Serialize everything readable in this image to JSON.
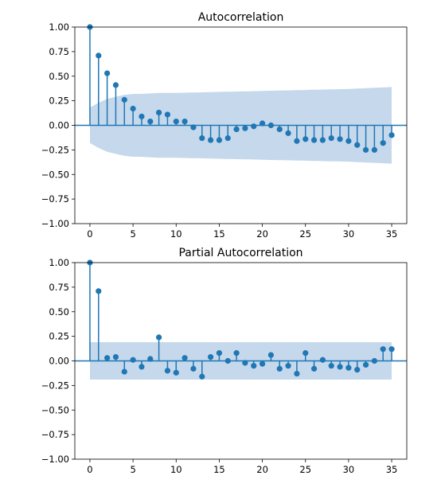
{
  "chart_data": [
    {
      "type": "stem",
      "title": "Autocorrelation",
      "xlim": [
        -1.75,
        36.75
      ],
      "ylim": [
        -1.0,
        1.0
      ],
      "xticks": [
        "0",
        "5",
        "10",
        "15",
        "20",
        "25",
        "30",
        "35"
      ],
      "yticks": [
        "1.00",
        "0.75",
        "0.50",
        "0.25",
        "0.00",
        "−0.25",
        "−0.50",
        "−0.75",
        "−1.00"
      ],
      "lags": [
        0,
        1,
        2,
        3,
        4,
        5,
        6,
        7,
        8,
        9,
        10,
        11,
        12,
        13,
        14,
        15,
        16,
        17,
        18,
        19,
        20,
        21,
        22,
        23,
        24,
        25,
        26,
        27,
        28,
        29,
        30,
        31,
        32,
        33,
        34,
        35
      ],
      "values": [
        1.0,
        0.71,
        0.53,
        0.41,
        0.26,
        0.17,
        0.09,
        0.04,
        0.13,
        0.11,
        0.04,
        0.04,
        -0.02,
        -0.13,
        -0.15,
        -0.15,
        -0.13,
        -0.04,
        -0.03,
        -0.01,
        0.02,
        0.0,
        -0.04,
        -0.08,
        -0.16,
        -0.14,
        -0.15,
        -0.15,
        -0.13,
        -0.14,
        -0.16,
        -0.2,
        -0.25,
        -0.25,
        -0.18,
        -0.1
      ],
      "confidence_band": {
        "lags": [
          0,
          1,
          2,
          3,
          4,
          5,
          6,
          8,
          10,
          15,
          20,
          25,
          30,
          35
        ],
        "upper": [
          0.18,
          0.23,
          0.27,
          0.29,
          0.31,
          0.32,
          0.32,
          0.33,
          0.33,
          0.34,
          0.35,
          0.36,
          0.37,
          0.39
        ],
        "lower": [
          -0.18,
          -0.23,
          -0.27,
          -0.29,
          -0.31,
          -0.32,
          -0.32,
          -0.33,
          -0.33,
          -0.34,
          -0.35,
          -0.36,
          -0.37,
          -0.39
        ]
      },
      "colors": {
        "stem": "#1f77b4",
        "band": "#c5d8ec"
      }
    },
    {
      "type": "stem",
      "title": "Partial Autocorrelation",
      "xlim": [
        -1.75,
        36.75
      ],
      "ylim": [
        -1.0,
        1.0
      ],
      "xticks": [
        "0",
        "5",
        "10",
        "15",
        "20",
        "25",
        "30",
        "35"
      ],
      "yticks": [
        "1.00",
        "0.75",
        "0.50",
        "0.25",
        "0.00",
        "−0.25",
        "−0.50",
        "−0.75",
        "−1.00"
      ],
      "lags": [
        0,
        1,
        2,
        3,
        4,
        5,
        6,
        7,
        8,
        9,
        10,
        11,
        12,
        13,
        14,
        15,
        16,
        17,
        18,
        19,
        20,
        21,
        22,
        23,
        24,
        25,
        26,
        27,
        28,
        29,
        30,
        31,
        32,
        33,
        34,
        35
      ],
      "values": [
        1.0,
        0.71,
        0.03,
        0.04,
        -0.11,
        0.01,
        -0.06,
        0.02,
        0.24,
        -0.1,
        -0.12,
        0.03,
        -0.08,
        -0.16,
        0.04,
        0.08,
        0.0,
        0.08,
        -0.02,
        -0.05,
        -0.03,
        0.06,
        -0.08,
        -0.05,
        -0.13,
        0.08,
        -0.08,
        0.01,
        -0.05,
        -0.06,
        -0.07,
        -0.09,
        -0.04,
        0.0,
        0.12,
        0.12
      ],
      "confidence_band": {
        "lags": [
          0,
          35
        ],
        "upper": [
          0.19,
          0.19
        ],
        "lower": [
          -0.19,
          -0.19
        ]
      },
      "colors": {
        "stem": "#1f77b4",
        "band": "#c5d8ec"
      }
    }
  ]
}
